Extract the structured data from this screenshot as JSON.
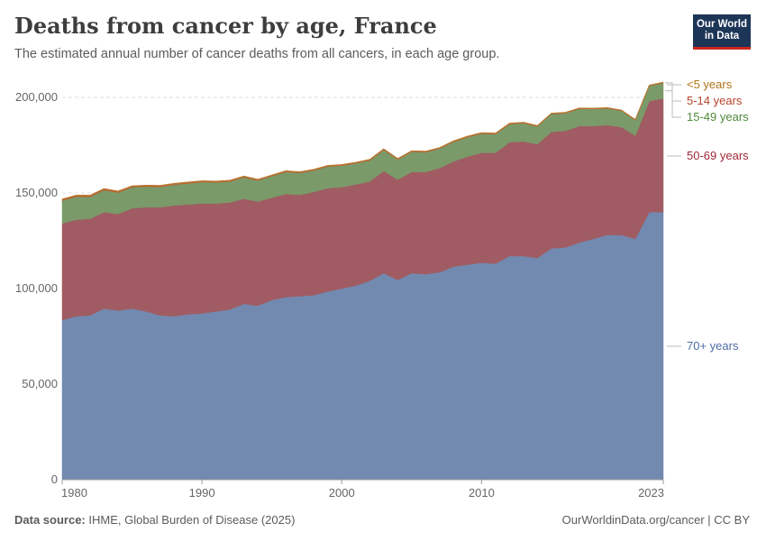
{
  "header": {
    "title": "Deaths from cancer by age, France",
    "subtitle": "The estimated annual number of cancer deaths from all cancers, in each age group."
  },
  "logo": {
    "line1": "Our World",
    "line2": "in Data"
  },
  "footer": {
    "source_label": "Data source:",
    "source_text": "IHME, Global Burden of Disease (2025)",
    "link_text": "OurWorldinData.org/cancer | CC BY"
  },
  "colors": {
    "70plus": "#7289b0",
    "50to69": "#a05c62",
    "15to49": "#7a9a6a",
    "5to14": "#c05b2e",
    "under5": "#b8772f",
    "label_70plus": "#4f6da6",
    "label_50to69": "#a02a37",
    "label_15to49": "#4e8a3a",
    "label_5to14": "#b5442a",
    "label_under5": "#b07418"
  },
  "chart_data": {
    "type": "area",
    "stacked": true,
    "x": [
      1980,
      1981,
      1982,
      1983,
      1984,
      1985,
      1986,
      1987,
      1988,
      1989,
      1990,
      1991,
      1992,
      1993,
      1994,
      1995,
      1996,
      1997,
      1998,
      1999,
      2000,
      2001,
      2002,
      2003,
      2004,
      2005,
      2006,
      2007,
      2008,
      2009,
      2010,
      2011,
      2012,
      2013,
      2014,
      2015,
      2016,
      2017,
      2018,
      2019,
      2020,
      2021,
      2022,
      2023
    ],
    "xticks": [
      "1980",
      "1990",
      "2000",
      "2010",
      "2023"
    ],
    "xtick_values": [
      1980,
      1990,
      2000,
      2010,
      2023
    ],
    "yticks": [
      "0",
      "50,000",
      "100,000",
      "150,000",
      "200,000"
    ],
    "ytick_values": [
      0,
      50000,
      100000,
      150000,
      200000
    ],
    "ylim": [
      0,
      200000
    ],
    "grid": "horizontal dashed",
    "legend": "labels at right end of areas",
    "series": [
      {
        "name": "70+ years",
        "key": "70plus",
        "values": [
          83500,
          85500,
          86000,
          89500,
          88500,
          89500,
          88000,
          86000,
          85500,
          86500,
          87000,
          88000,
          89000,
          92000,
          91000,
          94000,
          95500,
          96000,
          96500,
          98500,
          100000,
          101500,
          104000,
          108000,
          104500,
          108000,
          107500,
          108500,
          111500,
          112500,
          113500,
          113000,
          117000,
          117000,
          116000,
          121000,
          121500,
          124000,
          126000,
          128000,
          128000,
          126000,
          140000,
          140000
        ]
      },
      {
        "name": "50-69 years",
        "key": "50to69",
        "values": [
          50500,
          50500,
          50500,
          50500,
          50500,
          52500,
          54500,
          56500,
          58000,
          57500,
          57500,
          56500,
          56000,
          55000,
          54500,
          53500,
          54000,
          53000,
          54000,
          54000,
          53000,
          53000,
          52000,
          53500,
          52500,
          53000,
          53500,
          54500,
          55000,
          56500,
          57500,
          58000,
          59500,
          60000,
          59500,
          61000,
          61000,
          61000,
          59000,
          57500,
          56500,
          54000,
          58000,
          59500
        ]
      },
      {
        "name": "15-49 years",
        "key": "15to49",
        "values": [
          12000,
          12000,
          11500,
          11500,
          11200,
          11000,
          10800,
          10700,
          10800,
          11000,
          11200,
          11000,
          11000,
          11200,
          11000,
          11300,
          11500,
          11500,
          11300,
          11300,
          11300,
          11000,
          11000,
          11000,
          10500,
          10500,
          10300,
          10200,
          10200,
          10200,
          10000,
          9800,
          9500,
          9500,
          9300,
          9300,
          9200,
          9000,
          8900,
          8700,
          8500,
          8000,
          8000,
          8000
        ]
      },
      {
        "name": "5-14 years",
        "key": "5to14",
        "values": [
          450,
          440,
          430,
          420,
          410,
          400,
          390,
          380,
          370,
          360,
          350,
          340,
          330,
          320,
          310,
          300,
          300,
          290,
          290,
          280,
          280,
          270,
          270,
          260,
          260,
          250,
          250,
          250,
          240,
          240,
          240,
          230,
          230,
          230,
          220,
          220,
          220,
          210,
          210,
          210,
          200,
          200,
          200,
          200
        ]
      },
      {
        "name": "<5 years",
        "key": "under5",
        "values": [
          350,
          340,
          330,
          320,
          310,
          300,
          300,
          290,
          290,
          280,
          280,
          270,
          270,
          260,
          260,
          250,
          250,
          250,
          240,
          240,
          240,
          230,
          230,
          230,
          220,
          220,
          220,
          210,
          210,
          210,
          200,
          200,
          200,
          190,
          190,
          190,
          180,
          180,
          180,
          170,
          170,
          170,
          170,
          170
        ]
      }
    ]
  }
}
